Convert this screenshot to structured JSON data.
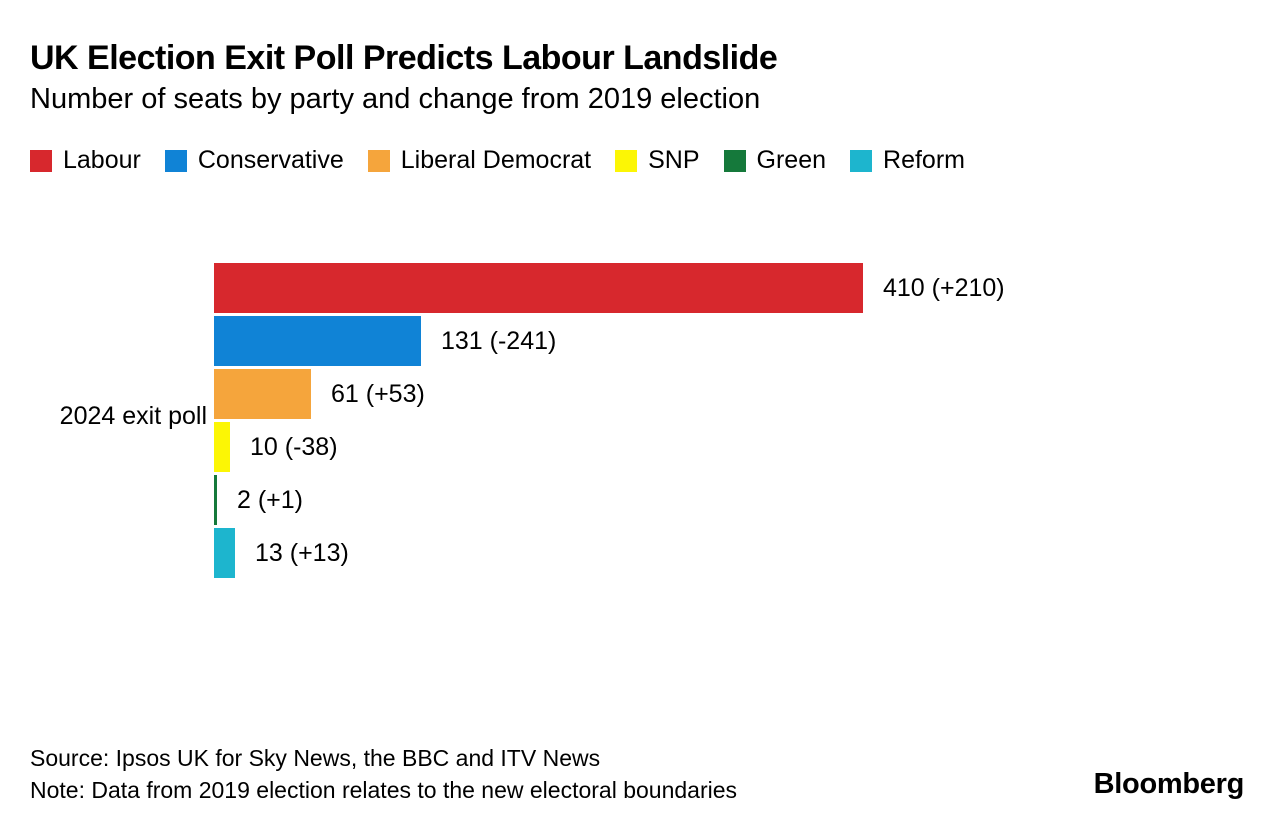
{
  "header": {
    "title": "UK Election Exit Poll Predicts Labour Landslide",
    "subtitle": "Number of seats by party and change from 2019 election"
  },
  "chart_data": {
    "type": "bar",
    "orientation": "horizontal",
    "title": "UK Election Exit Poll Predicts Labour Landslide",
    "subtitle": "Number of seats by party and change from 2019 election",
    "categories": [
      "2024 exit poll"
    ],
    "series": [
      {
        "name": "Labour",
        "value": 410,
        "change": 210,
        "label": "410 (+210)",
        "color": "#d7282d"
      },
      {
        "name": "Conservative",
        "value": 131,
        "change": -241,
        "label": "131 (-241)",
        "color": "#1083d6"
      },
      {
        "name": "Liberal Democrat",
        "value": 61,
        "change": 53,
        "label": "61 (+53)",
        "color": "#f5a53c"
      },
      {
        "name": "SNP",
        "value": 10,
        "change": -38,
        "label": "10 (-38)",
        "color": "#fcf605"
      },
      {
        "name": "Green",
        "value": 2,
        "change": 1,
        "label": "2 (+1)",
        "color": "#15793b"
      },
      {
        "name": "Reform",
        "value": 13,
        "change": 13,
        "label": "13 (+13)",
        "color": "#1db5ce"
      }
    ],
    "xlim": [
      0,
      410
    ],
    "grid": false,
    "axis_lines": false,
    "legend_position": "top",
    "value_labels": "outside-end"
  },
  "footer": {
    "source": "Source: Ipsos UK for Sky News, the BBC and ITV News",
    "note": "Note: Data from 2019 election relates to the new electoral boundaries",
    "logo": "Bloomberg"
  }
}
